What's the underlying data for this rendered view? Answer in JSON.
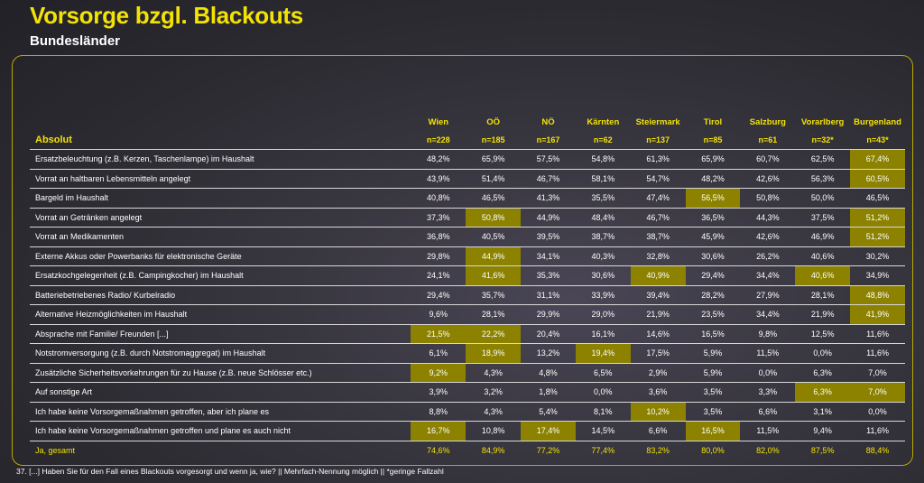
{
  "title": "Vorsorge bzgl. Blackouts",
  "subtitle": "Bundesländer",
  "table": {
    "columns": [
      "Wien",
      "OÖ",
      "NÖ",
      "Kärnten",
      "Steiermark",
      "Tirol",
      "Salzburg",
      "Vorarlberg",
      "Burgenland"
    ],
    "absolut": {
      "label": "Absolut",
      "values": [
        "n=228",
        "n=185",
        "n=167",
        "n=62",
        "n=137",
        "n=85",
        "n=61",
        "n=32*",
        "n=43*"
      ]
    },
    "rows": [
      {
        "label": "Ersatzbeleuchtung (z.B. Kerzen, Taschenlampe) im Haushalt",
        "values": [
          "48,2%",
          "65,9%",
          "57,5%",
          "54,8%",
          "61,3%",
          "65,9%",
          "60,7%",
          "62,5%",
          "67,4%"
        ],
        "highlight": [
          8
        ]
      },
      {
        "label": "Vorrat an haltbaren Lebensmitteln angelegt",
        "values": [
          "43,9%",
          "51,4%",
          "46,7%",
          "58,1%",
          "54,7%",
          "48,2%",
          "42,6%",
          "56,3%",
          "60,5%"
        ],
        "highlight": [
          8
        ]
      },
      {
        "label": "Bargeld im Haushalt",
        "values": [
          "40,8%",
          "46,5%",
          "41,3%",
          "35,5%",
          "47,4%",
          "56,5%",
          "50,8%",
          "50,0%",
          "46,5%"
        ],
        "highlight": [
          5
        ]
      },
      {
        "label": "Vorrat an Getränken angelegt",
        "values": [
          "37,3%",
          "50,8%",
          "44,9%",
          "48,4%",
          "46,7%",
          "36,5%",
          "44,3%",
          "37,5%",
          "51,2%"
        ],
        "highlight": [
          1,
          8
        ]
      },
      {
        "label": "Vorrat an Medikamenten",
        "values": [
          "36,8%",
          "40,5%",
          "39,5%",
          "38,7%",
          "38,7%",
          "45,9%",
          "42,6%",
          "46,9%",
          "51,2%"
        ],
        "highlight": [
          8
        ]
      },
      {
        "label": "Externe Akkus oder Powerbanks für elektronische Geräte",
        "values": [
          "29,8%",
          "44,9%",
          "34,1%",
          "40,3%",
          "32,8%",
          "30,6%",
          "26,2%",
          "40,6%",
          "30,2%"
        ],
        "highlight": [
          1
        ]
      },
      {
        "label": "Ersatzkochgelegenheit (z.B. Campingkocher) im Haushalt",
        "values": [
          "24,1%",
          "41,6%",
          "35,3%",
          "30,6%",
          "40,9%",
          "29,4%",
          "34,4%",
          "40,6%",
          "34,9%"
        ],
        "highlight": [
          1,
          4,
          7
        ]
      },
      {
        "label": "Batteriebetriebenes Radio/ Kurbelradio",
        "values": [
          "29,4%",
          "35,7%",
          "31,1%",
          "33,9%",
          "39,4%",
          "28,2%",
          "27,9%",
          "28,1%",
          "48,8%"
        ],
        "highlight": [
          8
        ]
      },
      {
        "label": "Alternative Heizmöglichkeiten im Haushalt",
        "values": [
          "9,6%",
          "28,1%",
          "29,9%",
          "29,0%",
          "21,9%",
          "23,5%",
          "34,4%",
          "21,9%",
          "41,9%"
        ],
        "highlight": [
          8
        ]
      },
      {
        "label": "Absprache mit Familie/ Freunden [...]",
        "values": [
          "21,5%",
          "22,2%",
          "20,4%",
          "16,1%",
          "14,6%",
          "16,5%",
          "9,8%",
          "12,5%",
          "11,6%"
        ],
        "highlight": [
          0,
          1
        ]
      },
      {
        "label": "Notstromversorgung (z.B. durch Notstromaggregat) im Haushalt",
        "values": [
          "6,1%",
          "18,9%",
          "13,2%",
          "19,4%",
          "17,5%",
          "5,9%",
          "11,5%",
          "0,0%",
          "11,6%"
        ],
        "highlight": [
          1,
          3
        ]
      },
      {
        "label": "Zusätzliche Sicherheitsvorkehrungen für zu Hause (z.B. neue Schlösser etc.)",
        "values": [
          "9,2%",
          "4,3%",
          "4,8%",
          "6,5%",
          "2,9%",
          "5,9%",
          "0,0%",
          "6,3%",
          "7,0%"
        ],
        "highlight": [
          0
        ]
      },
      {
        "label": "Auf sonstige Art",
        "values": [
          "3,9%",
          "3,2%",
          "1,8%",
          "0,0%",
          "3,6%",
          "3,5%",
          "3,3%",
          "6,3%",
          "7,0%"
        ],
        "highlight": [
          7,
          8
        ]
      },
      {
        "label": "Ich habe keine Vorsorgemaßnahmen getroffen, aber ich plane es",
        "values": [
          "8,8%",
          "4,3%",
          "5,4%",
          "8,1%",
          "10,2%",
          "3,5%",
          "6,6%",
          "3,1%",
          "0,0%"
        ],
        "highlight": [
          4
        ]
      },
      {
        "label": "Ich habe keine Vorsorgemaßnahmen getroffen und plane es auch nicht",
        "values": [
          "16,7%",
          "10,8%",
          "17,4%",
          "14,5%",
          "6,6%",
          "16,5%",
          "11,5%",
          "9,4%",
          "11,6%"
        ],
        "highlight": [
          0,
          2,
          5
        ]
      }
    ],
    "total": {
      "label": "Ja, gesamt",
      "values": [
        "74,6%",
        "84,9%",
        "77,2%",
        "77,4%",
        "83,2%",
        "80,0%",
        "82,0%",
        "87,5%",
        "88,4%"
      ]
    }
  },
  "footnote": "37. [...] Haben Sie für den Fall eines Blackouts vorgesorgt und wenn ja, wie? || Mehrfach-Nennung möglich || *geringe Fallzahl",
  "colors": {
    "accent": "#f3e206",
    "highlight": "#8c8200",
    "frame": "#b9a800"
  }
}
